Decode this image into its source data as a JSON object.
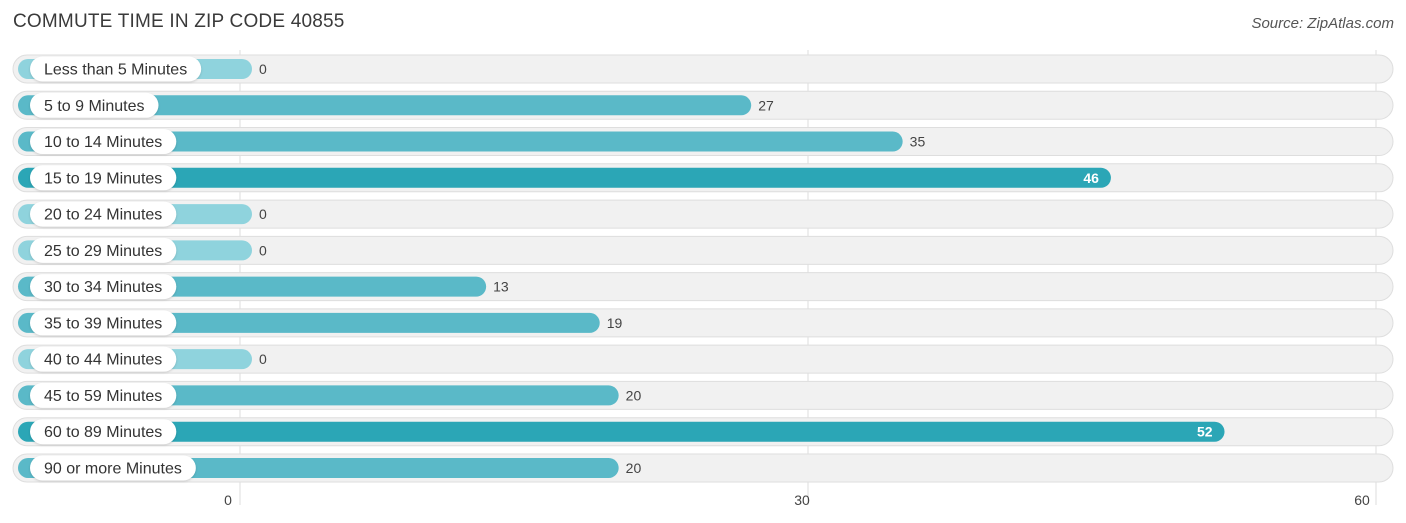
{
  "title": "COMMUTE TIME IN ZIP CODE 40855",
  "source": "Source: ZipAtlas.com",
  "chart_data": {
    "type": "bar",
    "orientation": "horizontal",
    "title": "COMMUTE TIME IN ZIP CODE 40855",
    "categories": [
      "Less than 5 Minutes",
      "5 to 9 Minutes",
      "10 to 14 Minutes",
      "15 to 19 Minutes",
      "20 to 24 Minutes",
      "25 to 29 Minutes",
      "30 to 34 Minutes",
      "35 to 39 Minutes",
      "40 to 44 Minutes",
      "45 to 59 Minutes",
      "60 to 89 Minutes",
      "90 or more Minutes"
    ],
    "values": [
      0,
      27,
      35,
      46,
      0,
      0,
      13,
      19,
      0,
      20,
      52,
      20
    ],
    "xlim": [
      0,
      60
    ],
    "xticks": [
      0,
      30,
      60
    ],
    "grid": true,
    "colors": {
      "bar_light": "#8fd3dd",
      "bar_mid": "#5ab9c8",
      "bar_strong": "#2ba6b6",
      "track": "#f1f1f1",
      "track_border": "#dedede",
      "grid": "#dddddd"
    }
  }
}
